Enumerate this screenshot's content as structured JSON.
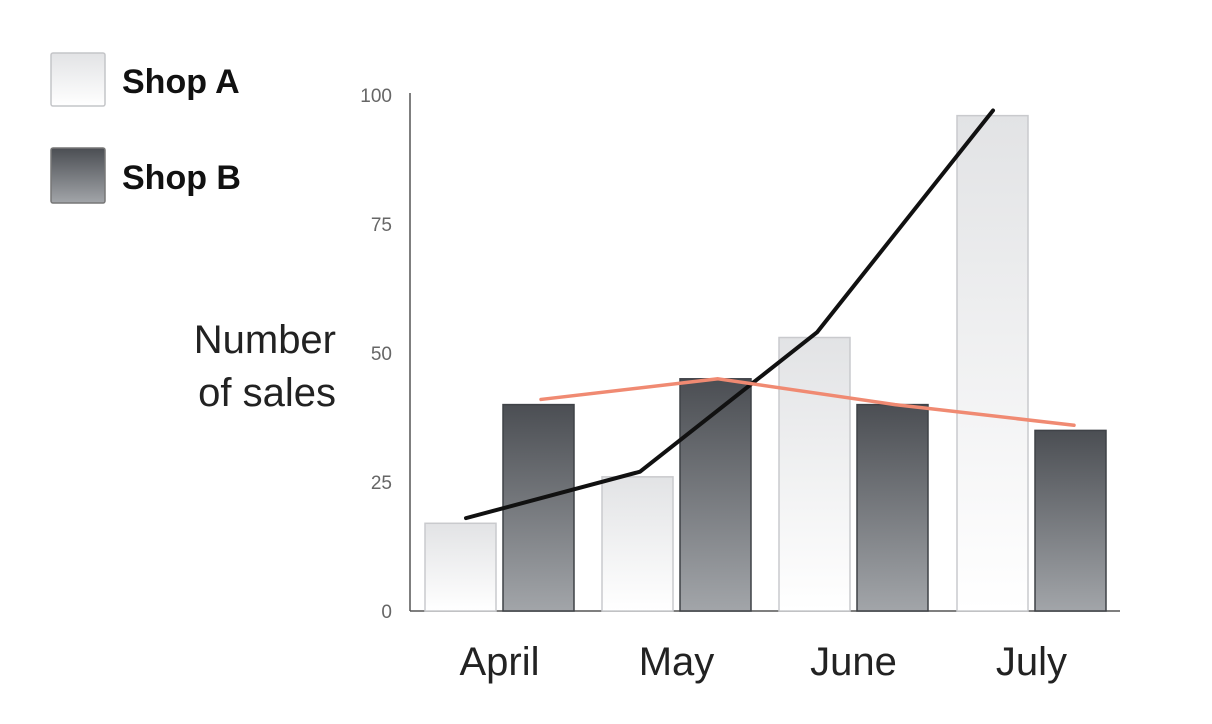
{
  "chart_data": {
    "type": "bar",
    "categories": [
      "April",
      "May",
      "June",
      "July"
    ],
    "series": [
      {
        "name": "Shop A",
        "values": [
          17,
          26,
          53,
          96
        ],
        "style": "light"
      },
      {
        "name": "Shop B",
        "values": [
          40,
          45,
          40,
          35
        ],
        "style": "dark"
      }
    ],
    "trend_lines": [
      {
        "series": "Shop A",
        "color": "#111111",
        "values": [
          18,
          27,
          54,
          97
        ]
      },
      {
        "series": "Shop B",
        "color": "#f08a72",
        "values": [
          41,
          45,
          40,
          36
        ]
      }
    ],
    "ylabel_lines": [
      "Number",
      "of sales"
    ],
    "xlabel": "",
    "title": "",
    "ylim": [
      0,
      100
    ],
    "yticks": [
      0,
      25,
      50,
      75,
      100
    ],
    "grid": false,
    "legend_position": "top-left"
  },
  "colors": {
    "shop_a_top": "#e2e3e5",
    "shop_a_bottom": "#ffffff",
    "shop_b_top": "#4b4e53",
    "shop_b_bottom": "#a2a5a9",
    "axis": "#555555"
  }
}
